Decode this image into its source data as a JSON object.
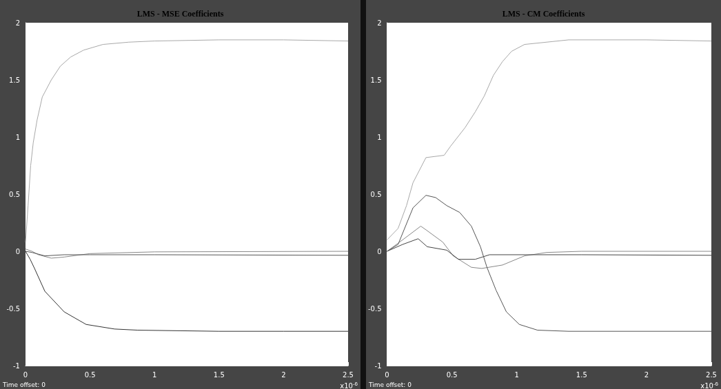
{
  "chart_data": [
    {
      "type": "line",
      "title": "LMS - MSE Coefficients",
      "xlabel": "x10$^{-6}$",
      "annotations": [
        "Time offset: 0"
      ],
      "xlim": [
        0,
        2.5
      ],
      "xticks": [
        0,
        0.5,
        1,
        1.5,
        2,
        2.5
      ],
      "ylim": [
        -1,
        2
      ],
      "yticks": [
        -1,
        -0.5,
        0,
        0.5,
        1,
        1.5,
        2
      ],
      "grid": false,
      "marker": "none",
      "line_style": "solid",
      "series": [
        {
          "color": "#a8a8a8",
          "x": [
            0,
            0.02,
            0.04,
            0.06,
            0.09,
            0.13,
            0.2,
            0.27,
            0.35,
            0.45,
            0.6,
            0.8,
            1.0,
            1.5,
            2.0,
            2.5
          ],
          "values": [
            0.08,
            0.4,
            0.75,
            0.95,
            1.15,
            1.35,
            1.5,
            1.62,
            1.7,
            1.76,
            1.81,
            1.83,
            1.84,
            1.85,
            1.85,
            1.84
          ]
        },
        {
          "color": "#888888",
          "x": [
            0,
            0.05,
            0.1,
            0.2,
            0.3,
            0.5,
            1.0,
            2.5
          ],
          "values": [
            0.02,
            0.0,
            -0.03,
            -0.06,
            -0.05,
            -0.02,
            -0.005,
            0
          ]
        },
        {
          "color": "#555555",
          "x": [
            0,
            0.05,
            0.15,
            0.3,
            0.5,
            1.0,
            2.5
          ],
          "values": [
            0,
            -0.01,
            -0.04,
            -0.03,
            -0.03,
            -0.03,
            -0.035
          ]
        },
        {
          "color": "#333333",
          "x": [
            0,
            0.036,
            0.07,
            0.15,
            0.3,
            0.47,
            0.69,
            0.87,
            1.5,
            2.0,
            2.5
          ],
          "values": [
            0,
            -0.07,
            -0.15,
            -0.35,
            -0.53,
            -0.64,
            -0.68,
            -0.69,
            -0.7,
            -0.7,
            -0.7
          ]
        }
      ]
    },
    {
      "type": "line",
      "title": "LMS - CM Coefficients",
      "xlabel": "x10$^{-6}$",
      "annotations": [
        "Time offset: 0"
      ],
      "xlim": [
        0,
        2.5
      ],
      "xticks": [
        0,
        0.5,
        1,
        1.5,
        2,
        2.5
      ],
      "ylim": [
        -1,
        2
      ],
      "yticks": [
        -1,
        -0.5,
        0,
        0.5,
        1,
        1.5,
        2
      ],
      "grid": false,
      "marker": "none",
      "line_style": "solid",
      "series": [
        {
          "color": "#a8a8a8",
          "x": [
            0,
            0.085,
            0.15,
            0.2,
            0.3,
            0.44,
            0.49,
            0.6,
            0.68,
            0.75,
            0.82,
            0.89,
            0.96,
            1.06,
            1.23,
            1.4,
            2.0,
            2.5
          ],
          "values": [
            0.1,
            0.2,
            0.4,
            0.6,
            0.82,
            0.84,
            0.92,
            1.08,
            1.22,
            1.36,
            1.54,
            1.66,
            1.75,
            1.81,
            1.83,
            1.85,
            1.85,
            1.84
          ]
        },
        {
          "color": "#888888",
          "x": [
            0,
            0.12,
            0.26,
            0.31,
            0.43,
            0.51,
            0.65,
            0.73,
            0.89,
            1.06,
            1.23,
            1.5,
            2.5
          ],
          "values": [
            0,
            0.1,
            0.22,
            0.18,
            0.08,
            -0.04,
            -0.14,
            -0.15,
            -0.12,
            -0.04,
            -0.01,
            0,
            0
          ]
        },
        {
          "color": "#444444",
          "x": [
            0,
            0.12,
            0.24,
            0.31,
            0.46,
            0.55,
            0.68,
            0.79,
            1.06,
            1.5,
            2.5
          ],
          "values": [
            0,
            0.06,
            0.11,
            0.04,
            0.01,
            -0.07,
            -0.07,
            -0.03,
            -0.03,
            -0.03,
            -0.035
          ]
        },
        {
          "color": "#555555",
          "x": [
            0,
            0.085,
            0.2,
            0.3,
            0.375,
            0.46,
            0.56,
            0.65,
            0.72,
            0.77,
            0.84,
            0.92,
            1.02,
            1.16,
            1.4,
            2.5
          ],
          "values": [
            0,
            0.06,
            0.38,
            0.49,
            0.47,
            0.4,
            0.34,
            0.22,
            0.04,
            -0.14,
            -0.34,
            -0.53,
            -0.64,
            -0.69,
            -0.7,
            -0.7
          ]
        }
      ]
    }
  ]
}
